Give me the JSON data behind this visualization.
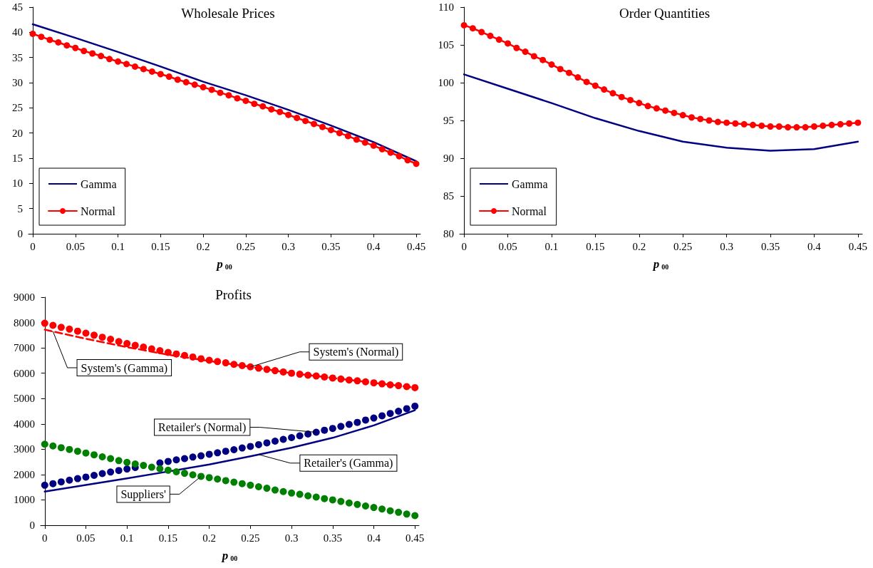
{
  "chart_data": [
    {
      "type": "line",
      "title": "Wholesale Prices",
      "xlabel": "p$_{00}$",
      "legend": "bottom left",
      "marker": "circle",
      "line_style": "solid",
      "grid": false,
      "x": [
        0,
        0.01,
        0.02,
        0.03,
        0.04,
        0.05,
        0.06,
        0.07,
        0.08,
        0.09,
        0.1,
        0.11,
        0.12,
        0.13,
        0.14,
        0.15,
        0.16,
        0.17,
        0.18,
        0.19,
        0.2,
        0.21,
        0.22,
        0.23,
        0.24,
        0.25,
        0.26,
        0.27,
        0.28,
        0.29,
        0.3,
        0.31,
        0.32,
        0.33,
        0.34,
        0.35,
        0.36,
        0.37,
        0.38,
        0.39,
        0.4,
        0.41,
        0.42,
        0.43,
        0.44,
        0.45
      ],
      "xlim": [
        -0.005,
        0.455
      ],
      "xticks": [
        0,
        0.05,
        0.1,
        0.15,
        0.2,
        0.25,
        0.3,
        0.35,
        0.4,
        0.45
      ],
      "ylim": [
        0,
        45
      ],
      "yticks": [
        0,
        5,
        10,
        15,
        20,
        25,
        30,
        35,
        40,
        45
      ],
      "series": [
        {
          "name": "Gamma",
          "color": "#000080",
          "marker": "none",
          "x": [
            0,
            0.05,
            0.1,
            0.15,
            0.2,
            0.25,
            0.3,
            0.35,
            0.4,
            0.45
          ],
          "values": [
            41.6,
            38.9,
            36.1,
            33.2,
            30.2,
            27.5,
            24.6,
            21.5,
            18.2,
            14.4
          ]
        },
        {
          "name": "Normal",
          "color": "#ff0000",
          "values": [
            39.7,
            39.1,
            38.5,
            38.0,
            37.4,
            36.9,
            36.3,
            35.8,
            35.3,
            34.7,
            34.2,
            33.7,
            33.2,
            32.7,
            32.2,
            31.7,
            31.2,
            30.6,
            30.1,
            29.6,
            29.1,
            28.6,
            28.0,
            27.5,
            26.9,
            26.4,
            25.8,
            25.3,
            24.7,
            24.2,
            23.6,
            23.0,
            22.4,
            21.8,
            21.2,
            20.6,
            20.0,
            19.4,
            18.7,
            18.1,
            17.5,
            16.8,
            16.1,
            15.4,
            14.6,
            13.9
          ]
        }
      ]
    },
    {
      "type": "line",
      "title": "Order Quantities",
      "xlabel": "p$_{00}$",
      "legend": "bottom left",
      "marker": "circle",
      "line_style": "solid",
      "grid": false,
      "x": [
        0,
        0.01,
        0.02,
        0.03,
        0.04,
        0.05,
        0.06,
        0.07,
        0.08,
        0.09,
        0.1,
        0.11,
        0.12,
        0.13,
        0.14,
        0.15,
        0.16,
        0.17,
        0.18,
        0.19,
        0.2,
        0.21,
        0.22,
        0.23,
        0.24,
        0.25,
        0.26,
        0.27,
        0.28,
        0.29,
        0.3,
        0.31,
        0.32,
        0.33,
        0.34,
        0.35,
        0.36,
        0.37,
        0.38,
        0.39,
        0.4,
        0.41,
        0.42,
        0.43,
        0.44,
        0.45
      ],
      "xlim": [
        -0.005,
        0.455
      ],
      "xticks": [
        0,
        0.05,
        0.1,
        0.15,
        0.2,
        0.25,
        0.3,
        0.35,
        0.4,
        0.45
      ],
      "ylim": [
        80,
        110
      ],
      "yticks": [
        80,
        85,
        90,
        95,
        100,
        105,
        110
      ],
      "series": [
        {
          "name": "Gamma",
          "color": "#000080",
          "marker": "none",
          "x": [
            0,
            0.05,
            0.1,
            0.15,
            0.2,
            0.25,
            0.3,
            0.35,
            0.4,
            0.45
          ],
          "values": [
            101.1,
            99.2,
            97.3,
            95.3,
            93.6,
            92.2,
            91.4,
            91.0,
            91.2,
            92.2
          ]
        },
        {
          "name": "Normal",
          "color": "#ff0000",
          "values": [
            107.6,
            107.2,
            106.7,
            106.2,
            105.7,
            105.2,
            104.6,
            104.1,
            103.5,
            103.0,
            102.4,
            101.8,
            101.3,
            100.7,
            100.1,
            99.6,
            99.1,
            98.6,
            98.1,
            97.7,
            97.3,
            96.9,
            96.6,
            96.3,
            96.0,
            95.7,
            95.4,
            95.2,
            95.0,
            94.8,
            94.7,
            94.6,
            94.5,
            94.4,
            94.3,
            94.2,
            94.2,
            94.1,
            94.1,
            94.1,
            94.2,
            94.3,
            94.4,
            94.5,
            94.6,
            94.7
          ]
        }
      ]
    },
    {
      "type": "line",
      "title": "Profits",
      "xlabel": "p$_{00}$",
      "marker": "circle",
      "line_style": "solid",
      "grid": false,
      "x": [
        0,
        0.01,
        0.02,
        0.03,
        0.04,
        0.05,
        0.06,
        0.07,
        0.08,
        0.09,
        0.1,
        0.11,
        0.12,
        0.13,
        0.14,
        0.15,
        0.16,
        0.17,
        0.18,
        0.19,
        0.2,
        0.21,
        0.22,
        0.23,
        0.24,
        0.25,
        0.26,
        0.27,
        0.28,
        0.29,
        0.3,
        0.31,
        0.32,
        0.33,
        0.34,
        0.35,
        0.36,
        0.37,
        0.38,
        0.39,
        0.4,
        0.41,
        0.42,
        0.43,
        0.44,
        0.45
      ],
      "xlim": [
        -0.005,
        0.455
      ],
      "xticks": [
        0,
        0.05,
        0.1,
        0.15,
        0.2,
        0.25,
        0.3,
        0.35,
        0.4,
        0.45
      ],
      "ylim": [
        0,
        9000
      ],
      "yticks": [
        0,
        1000,
        2000,
        3000,
        4000,
        5000,
        6000,
        7000,
        8000,
        9000
      ],
      "series": [
        {
          "type": "line",
          "color": "#ff0000",
          "marker": "none",
          "line_style": "dashed",
          "x": [
            0,
            0.05,
            0.1,
            0.15,
            0.2,
            0.25,
            0.3,
            0.35,
            0.4,
            0.45
          ],
          "values": [
            7720,
            7360,
            7030,
            6730,
            6480,
            6250,
            6000,
            5810,
            5620,
            5430
          ]
        },
        {
          "type": "scatter",
          "color": "#ff0000",
          "values": [
            7970,
            7890,
            7810,
            7740,
            7660,
            7580,
            7500,
            7420,
            7340,
            7250,
            7170,
            7100,
            7030,
            6960,
            6890,
            6820,
            6760,
            6700,
            6640,
            6570,
            6510,
            6460,
            6410,
            6350,
            6300,
            6250,
            6200,
            6150,
            6100,
            6050,
            6000,
            5960,
            5920,
            5890,
            5850,
            5810,
            5770,
            5730,
            5700,
            5660,
            5620,
            5580,
            5540,
            5510,
            5470,
            5430
          ]
        },
        {
          "type": "line",
          "color": "#000080",
          "marker": "none",
          "x": [
            0,
            0.05,
            0.1,
            0.15,
            0.2,
            0.25,
            0.3,
            0.35,
            0.4,
            0.45
          ],
          "values": [
            1330,
            1590,
            1850,
            2120,
            2400,
            2720,
            3060,
            3450,
            3940,
            4540
          ]
        },
        {
          "type": "scatter",
          "color": "#000080",
          "values": [
            1580,
            1640,
            1710,
            1780,
            1840,
            1900,
            1970,
            2040,
            2100,
            2160,
            2220,
            2280,
            null,
            null,
            2460,
            2520,
            2580,
            2630,
            2690,
            2740,
            2800,
            2860,
            2920,
            2980,
            3050,
            3110,
            3180,
            3250,
            3320,
            3390,
            3460,
            3530,
            3600,
            3670,
            3750,
            3820,
            3900,
            3980,
            4060,
            4150,
            4230,
            4320,
            4410,
            4500,
            4600,
            4700
          ]
        },
        {
          "type": "scatter",
          "color": "#008000",
          "values": [
            3200,
            3130,
            3060,
            2990,
            2920,
            2850,
            2780,
            2700,
            2630,
            2550,
            2480,
            2420,
            2360,
            2290,
            2230,
            2170,
            2110,
            2050,
            1990,
            1930,
            1880,
            1820,
            1760,
            1700,
            1640,
            1580,
            1520,
            1460,
            1390,
            1330,
            1270,
            1220,
            1160,
            1110,
            1050,
            1000,
            940,
            880,
            820,
            760,
            700,
            640,
            570,
            510,
            440,
            380
          ]
        }
      ],
      "annotations": [
        {
          "text": "System's (Gamma)",
          "x": 0.01,
          "y": 7650
        },
        {
          "text": "System's (Normal)",
          "x": 0.25,
          "y": 6250
        },
        {
          "text": "Retailer's (Normal)",
          "x": 0.33,
          "y": 3670
        },
        {
          "text": "Retailer's (Gamma)",
          "x": 0.26,
          "y": 2790
        },
        {
          "text": "Suppliers'",
          "x": 0.19,
          "y": 1930
        }
      ]
    }
  ]
}
